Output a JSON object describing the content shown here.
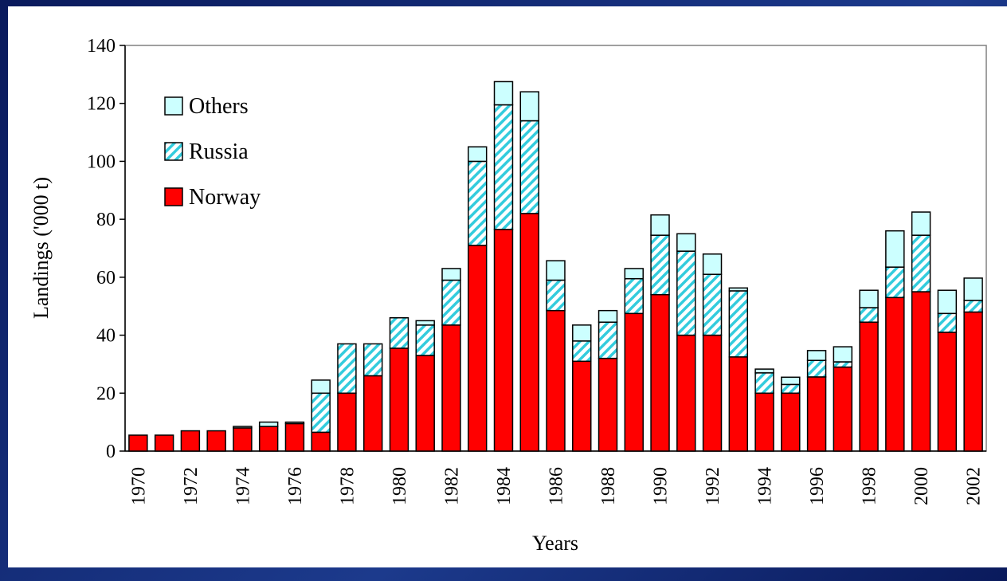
{
  "chart_data": {
    "type": "stacked-bar",
    "y_label": "Landings ('000 t)",
    "x_label": "Years",
    "categories": [
      "1970",
      null,
      "1972",
      null,
      "1974",
      null,
      "1976",
      null,
      "1978",
      null,
      "1980",
      null,
      "1982",
      null,
      "1984",
      null,
      "1986",
      null,
      "1988",
      null,
      "1990",
      null,
      "1992",
      null,
      "1994",
      null,
      "1996",
      null,
      "1998",
      null,
      "2000",
      null,
      "2002"
    ],
    "series": [
      {
        "name": "Norway",
        "color": "#ff0000",
        "pattern": "solid",
        "values": [
          5.5,
          5.5,
          7,
          7,
          8,
          8.5,
          9.5,
          6.5,
          20,
          26,
          35.5,
          33,
          43.5,
          71,
          76.5,
          82,
          48.5,
          31,
          32,
          47.5,
          54,
          40,
          40,
          32.5,
          20,
          20,
          25.6,
          29,
          44.5,
          53,
          55,
          41,
          48
        ]
      },
      {
        "name": "Russia",
        "color": "#33ccdd",
        "pattern": "hatch",
        "values": [
          0,
          0,
          0,
          0,
          0,
          0,
          0,
          13.5,
          17,
          11,
          10.5,
          10.5,
          15.5,
          29,
          43,
          32,
          10.5,
          7,
          12.5,
          12,
          20.5,
          29,
          21,
          22.8,
          7,
          3,
          5.7,
          1.8,
          5,
          10.5,
          19.5,
          6.5,
          4
        ]
      },
      {
        "name": "Others",
        "color": "#ccffff",
        "pattern": "solid",
        "values": [
          0,
          0,
          0,
          0,
          0.5,
          1.5,
          0.5,
          4.5,
          0,
          0,
          0,
          1.5,
          4,
          5,
          8,
          10,
          6.7,
          5.5,
          4,
          3.5,
          7,
          6,
          7,
          1,
          1.3,
          2.5,
          3.4,
          5.2,
          6,
          12.5,
          8,
          8,
          7.7
        ]
      }
    ],
    "ylim": [
      0,
      140
    ],
    "yticks": [
      0,
      20,
      40,
      60,
      80,
      100,
      120,
      140
    ],
    "legend": "upper left",
    "grid": false
  }
}
